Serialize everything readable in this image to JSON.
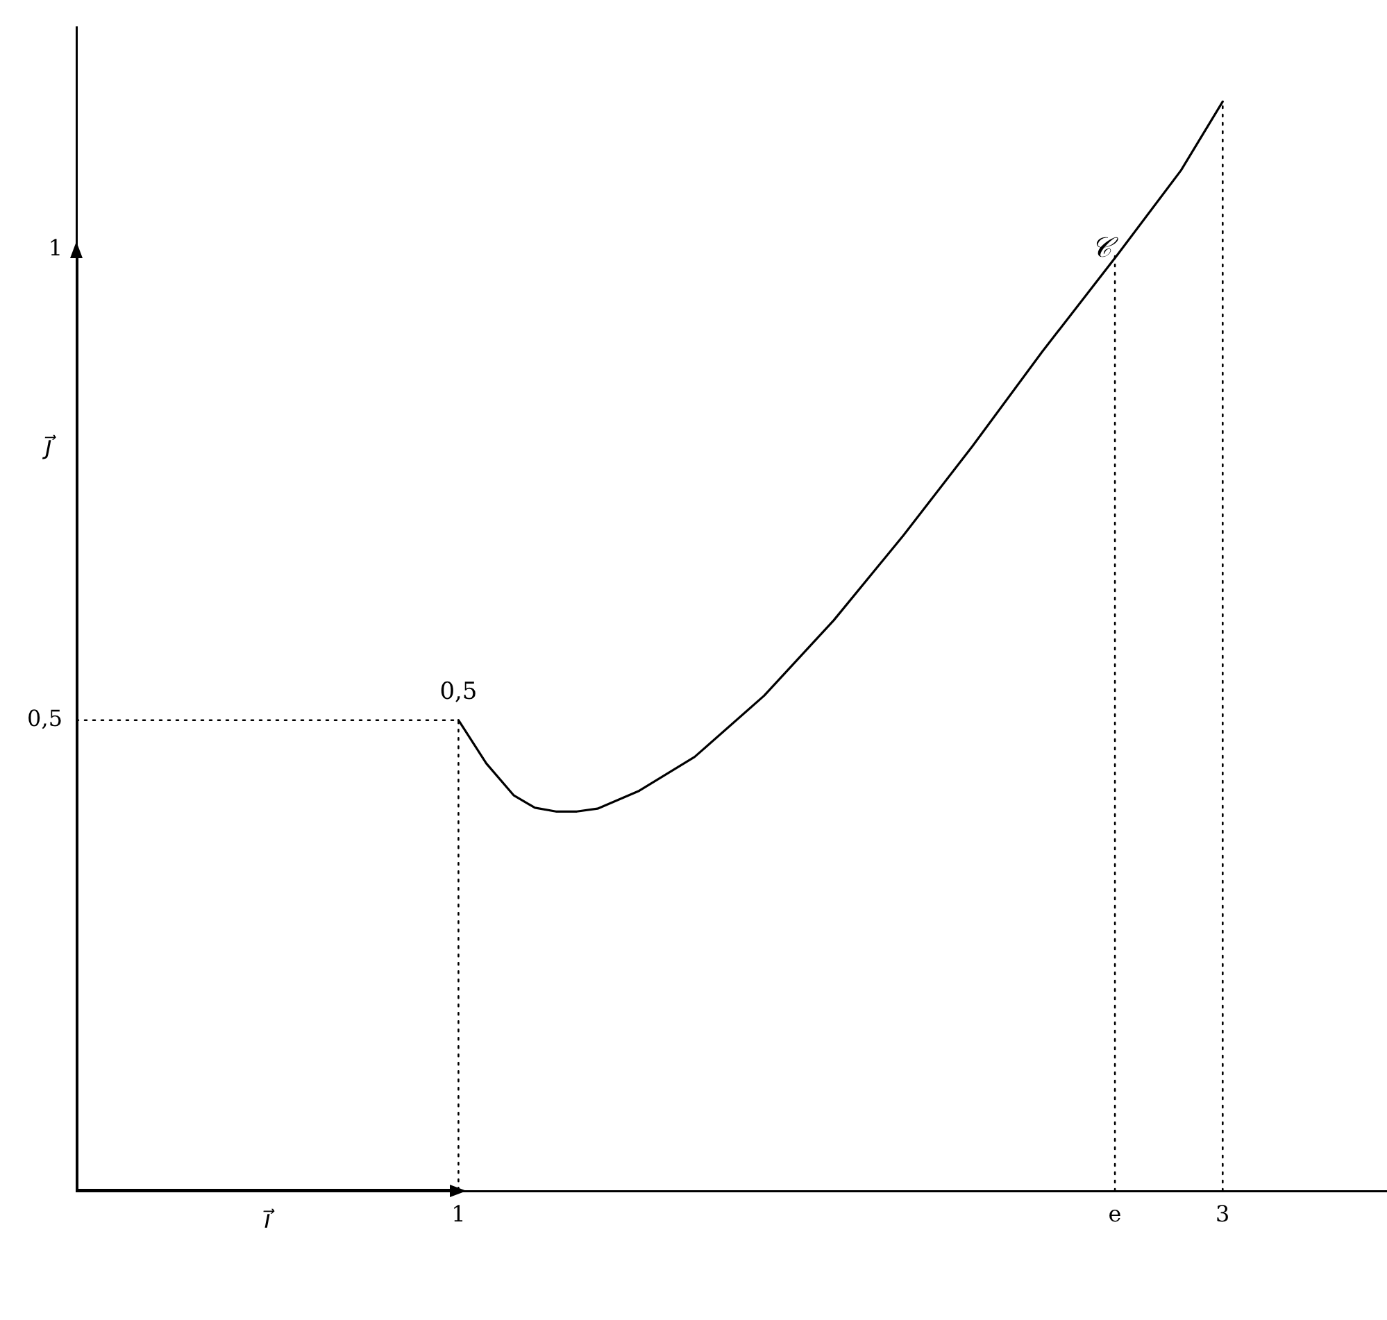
{
  "chart_data": {
    "type": "line",
    "xlabel": "i⃗",
    "ylabel": "j⃗",
    "xlim": [
      0,
      3.43
    ],
    "ylim": [
      0,
      1.236
    ],
    "xticks": [
      1,
      {
        "value": 2.718,
        "label": "e"
      },
      3
    ],
    "yticks": [
      {
        "value": 0.5,
        "label": "0,5"
      },
      1
    ],
    "grid": false,
    "legend": false,
    "series": [
      {
        "color": "#000000",
        "line_style": "solid",
        "x": [
          1,
          1.073,
          1.145,
          1.2,
          1.255,
          1.31,
          1.364,
          1.473,
          1.618,
          1.8,
          1.982,
          2.164,
          2.345,
          2.527,
          2.724,
          2.891,
          3.0
        ],
        "values": [
          0.5,
          0.454,
          0.42,
          0.407,
          0.403,
          0.403,
          0.406,
          0.425,
          0.461,
          0.526,
          0.606,
          0.696,
          0.791,
          0.891,
          0.994,
          1.084,
          1.157
        ]
      },
      {
        "color": "#000000",
        "line_style": "dotted",
        "x": [
          0,
          1,
          1
        ],
        "values": [
          0.5,
          0.5,
          0
        ]
      },
      {
        "color": "#000000",
        "line_style": "dotted",
        "x": [
          2.718,
          2.718
        ],
        "values": [
          0,
          0.994
        ]
      },
      {
        "color": "#000000",
        "line_style": "dotted",
        "x": [
          3,
          3
        ],
        "values": [
          0,
          1.157
        ]
      },
      {
        "color": "#000000",
        "line_style": "solid",
        "x": [
          0,
          1
        ],
        "values": [
          0,
          0
        ]
      },
      {
        "color": "#000000",
        "line_style": "solid",
        "x": [
          0,
          0
        ],
        "values": [
          0,
          1
        ]
      }
    ],
    "annotations": [
      {
        "text": "0,5",
        "x": 1,
        "y": 0.5
      },
      {
        "text": "𝒞",
        "x": 2.718,
        "y": 0.994
      }
    ]
  }
}
